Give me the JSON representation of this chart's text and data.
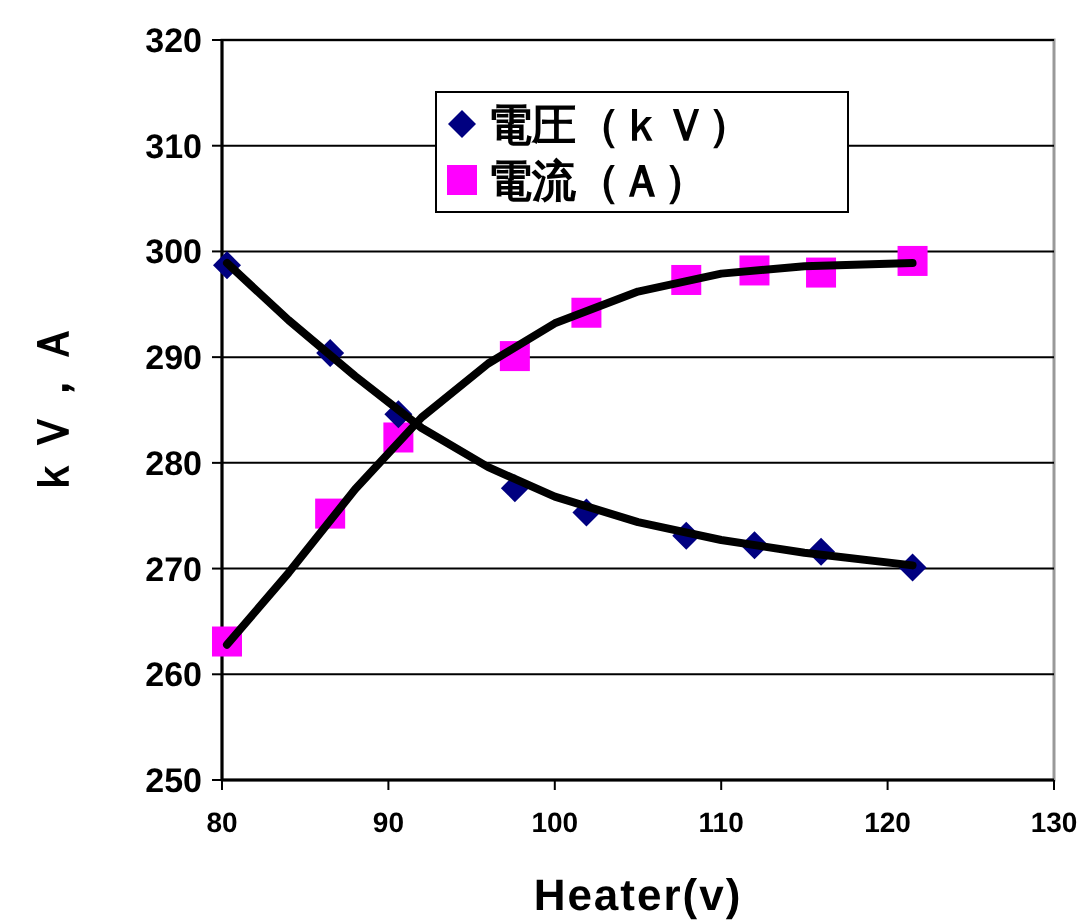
{
  "chart_data": {
    "type": "scatter",
    "xlabel": "Heater(v)",
    "ylabel": "ｋＶ，Ａ",
    "xlim": [
      80,
      130
    ],
    "xticks": [
      80,
      90,
      100,
      110,
      120,
      130
    ],
    "ylim": [
      250,
      320
    ],
    "yticks": [
      250,
      260,
      270,
      280,
      290,
      300,
      310,
      320
    ],
    "grid": "y",
    "legend": "top",
    "series": [
      {
        "name": "電圧（ｋＶ）",
        "marker": "diamond",
        "color": "#000080",
        "x": [
          80.3,
          86.5,
          90.6,
          97.6,
          101.9,
          107.9,
          112,
          116,
          121.5
        ],
        "values": [
          298.7,
          290.4,
          284.6,
          277.6,
          275.3,
          273.1,
          272.2,
          271.6,
          270.1
        ]
      },
      {
        "name": "電流（Ａ）",
        "marker": "square",
        "color": "#ff00ff",
        "x": [
          80.3,
          86.5,
          90.6,
          97.6,
          101.9,
          107.9,
          112,
          116,
          121.5
        ],
        "values": [
          263.1,
          275.2,
          282.4,
          290.1,
          294.2,
          297.3,
          298.2,
          298.0,
          299.1
        ]
      },
      {
        "type": "line",
        "marker": "none",
        "color": "#000000",
        "x": [
          80.3,
          84,
          88,
          92,
          96,
          100,
          105,
          110,
          115,
          121.5
        ],
        "values": [
          298.9,
          293.5,
          288.2,
          283.3,
          279.6,
          276.8,
          274.4,
          272.7,
          271.5,
          270.3
        ]
      },
      {
        "type": "line",
        "marker": "none",
        "color": "#000000",
        "x": [
          80.3,
          84,
          88,
          92,
          96,
          100,
          105,
          110,
          115,
          121.5
        ],
        "values": [
          262.8,
          269.6,
          277.5,
          284.3,
          289.4,
          293.2,
          296.2,
          297.9,
          298.6,
          298.9
        ]
      }
    ]
  }
}
